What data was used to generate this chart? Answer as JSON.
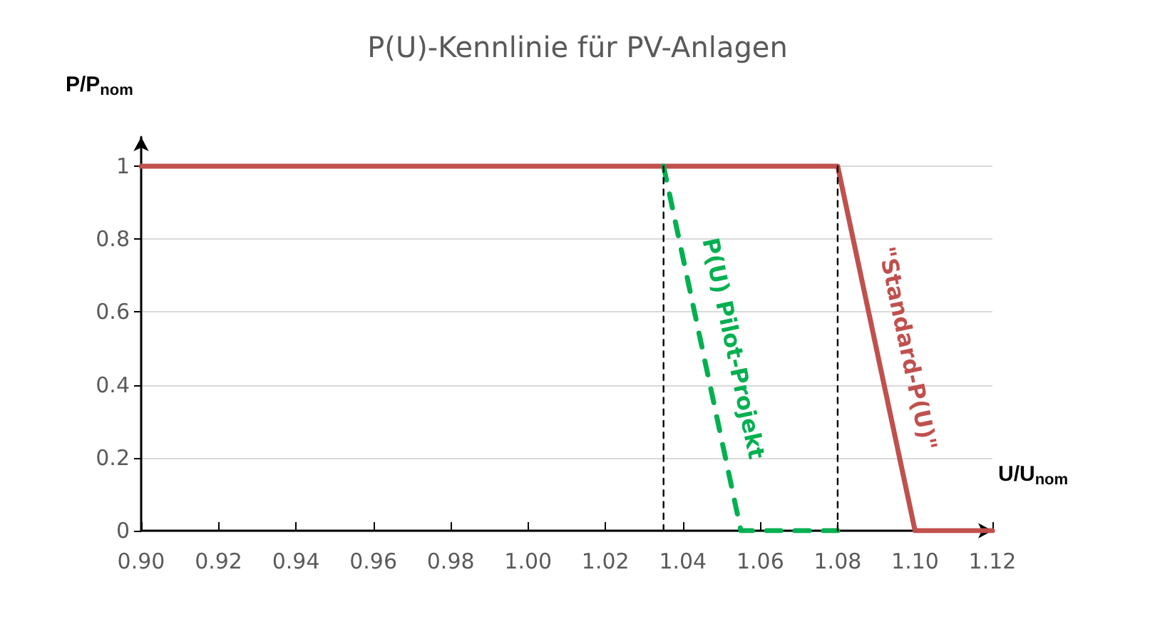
{
  "chart_data": {
    "type": "line",
    "title": "P(U)-Kennlinie für PV-Anlagen",
    "xlabel": "U/U$_{nom}$",
    "ylabel": "P/P$_{nom}$",
    "xlim": [
      0.9,
      1.12
    ],
    "xticks": [
      {
        "value": 0.9,
        "label": "0.90"
      },
      {
        "value": 0.92,
        "label": "0.92"
      },
      {
        "value": 0.94,
        "label": "0.94"
      },
      {
        "value": 0.96,
        "label": "0.96"
      },
      {
        "value": 0.98,
        "label": "0.98"
      },
      {
        "value": 1.0,
        "label": "1.00"
      },
      {
        "value": 1.02,
        "label": "1.02"
      },
      {
        "value": 1.04,
        "label": "1.04"
      },
      {
        "value": 1.06,
        "label": "1.06"
      },
      {
        "value": 1.08,
        "label": "1.08"
      },
      {
        "value": 1.1,
        "label": "1.10"
      },
      {
        "value": 1.12,
        "label": "1.12"
      }
    ],
    "ylim": [
      0,
      1.08
    ],
    "yticks": [
      0,
      0.2,
      0.4,
      0.6,
      0.8,
      1
    ],
    "grid": "y",
    "legend": false,
    "marker": "none",
    "series": [
      {
        "name": "\"Standard-P(U)\"",
        "color": "#c0504d",
        "line_style": "solid",
        "x": [
          0.9,
          1.08,
          1.1,
          1.12
        ],
        "values": [
          1,
          1,
          0,
          0
        ]
      },
      {
        "name": "P(U) Pilot-Projekt",
        "color": "#00b050",
        "line_style": "dashed",
        "x": [
          1.035,
          1.055,
          1.08
        ],
        "values": [
          1,
          0,
          0
        ]
      },
      {
        "color": "#000000",
        "line_style": "dashed",
        "x": [
          1.035,
          1.035
        ],
        "values": [
          1,
          0
        ]
      },
      {
        "color": "#000000",
        "line_style": "dashed",
        "x": [
          1.08,
          1.08
        ],
        "values": [
          1,
          0
        ]
      }
    ]
  }
}
